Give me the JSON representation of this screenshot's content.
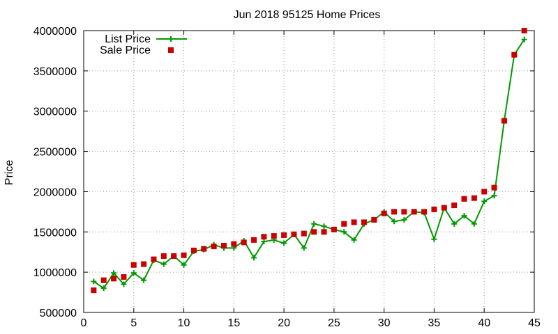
{
  "chart_data": {
    "type": "line",
    "title": "Jun 2018 95125 Home Prices",
    "xlabel": "",
    "ylabel": "Price",
    "xlim": [
      0,
      45
    ],
    "ylim": [
      500000,
      4000000
    ],
    "xticks": [
      0,
      5,
      10,
      15,
      20,
      25,
      30,
      35,
      40,
      45
    ],
    "yticks": [
      500000,
      1000000,
      1500000,
      2000000,
      2500000,
      3000000,
      3500000,
      4000000
    ],
    "grid": true,
    "legend_position": "top-left",
    "series": [
      {
        "name": "List Price",
        "style": "line-plus",
        "color": "#009900",
        "x": [
          1,
          2,
          3,
          4,
          5,
          6,
          7,
          8,
          9,
          10,
          11,
          12,
          13,
          14,
          15,
          16,
          17,
          18,
          19,
          20,
          21,
          22,
          23,
          24,
          25,
          26,
          27,
          28,
          29,
          30,
          31,
          32,
          33,
          34,
          35,
          36,
          37,
          38,
          39,
          40,
          41,
          42,
          43,
          44
        ],
        "y": [
          885000,
          800000,
          990000,
          850000,
          990000,
          900000,
          1150000,
          1100000,
          1200000,
          1090000,
          1260000,
          1280000,
          1340000,
          1300000,
          1300000,
          1390000,
          1180000,
          1380000,
          1400000,
          1360000,
          1470000,
          1300000,
          1600000,
          1570000,
          1530000,
          1500000,
          1400000,
          1600000,
          1650000,
          1750000,
          1630000,
          1650000,
          1750000,
          1740000,
          1410000,
          1800000,
          1600000,
          1700000,
          1600000,
          1880000,
          1950000,
          2880000,
          3700000,
          3890000
        ]
      },
      {
        "name": "Sale Price",
        "style": "points-square",
        "color": "#cc0000",
        "x": [
          1,
          2,
          3,
          4,
          5,
          6,
          7,
          8,
          9,
          10,
          11,
          12,
          13,
          14,
          15,
          16,
          17,
          18,
          19,
          20,
          21,
          22,
          23,
          24,
          25,
          26,
          27,
          28,
          29,
          30,
          31,
          32,
          33,
          34,
          35,
          36,
          37,
          38,
          39,
          40,
          41,
          42,
          43,
          44
        ],
        "y": [
          775000,
          900000,
          920000,
          940000,
          1090000,
          1100000,
          1160000,
          1200000,
          1200000,
          1210000,
          1270000,
          1290000,
          1320000,
          1330000,
          1350000,
          1370000,
          1400000,
          1440000,
          1450000,
          1460000,
          1470000,
          1480000,
          1500000,
          1500000,
          1530000,
          1600000,
          1620000,
          1620000,
          1650000,
          1730000,
          1750000,
          1750000,
          1750000,
          1750000,
          1780000,
          1800000,
          1830000,
          1910000,
          1920000,
          2000000,
          2050000,
          2880000,
          3700000,
          4000000
        ]
      }
    ]
  }
}
